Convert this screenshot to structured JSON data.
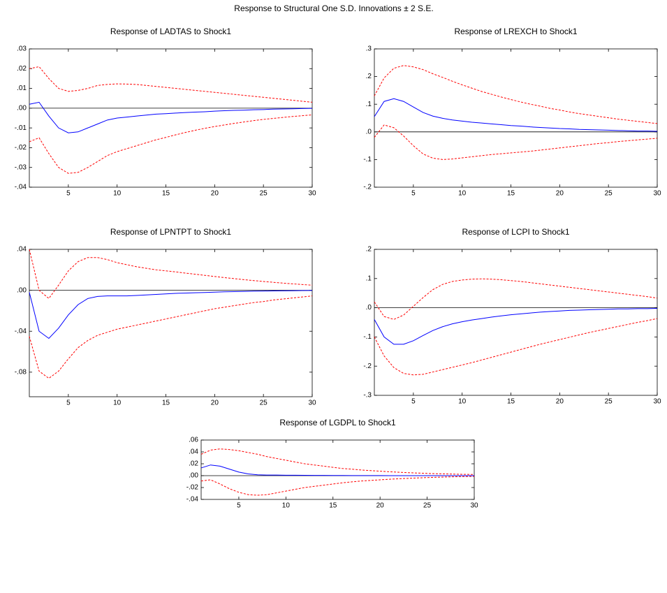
{
  "title": "Response to Structural One S.D. Innovations ± 2 S.E.",
  "chart_data": [
    {
      "type": "line",
      "title": "Response of LADTAS to Shock1",
      "x": [
        1,
        2,
        3,
        4,
        5,
        6,
        7,
        8,
        9,
        10,
        11,
        12,
        13,
        14,
        15,
        16,
        17,
        18,
        19,
        20,
        21,
        22,
        23,
        24,
        25,
        26,
        27,
        28,
        29,
        30
      ],
      "xlim": [
        1,
        30
      ],
      "xticks": [
        5,
        10,
        15,
        20,
        25,
        30
      ],
      "ylim": [
        -0.04,
        0.03
      ],
      "yticks": [
        {
          "value": 0.03,
          "label": ".03"
        },
        {
          "value": 0.02,
          "label": ".02"
        },
        {
          "value": 0.01,
          "label": ".01"
        },
        {
          "value": 0,
          "label": ".00"
        },
        {
          "value": -0.01,
          "label": "-.01"
        },
        {
          "value": -0.02,
          "label": "-.02"
        },
        {
          "value": -0.03,
          "label": "-.03"
        },
        {
          "value": -0.04,
          "label": "-.04"
        }
      ],
      "zero_line": true,
      "series": [
        {
          "color": "#0000ff",
          "dash": false,
          "values": [
            0.002,
            0.003,
            -0.004,
            -0.01,
            -0.0125,
            -0.012,
            -0.01,
            -0.008,
            -0.006,
            -0.005,
            -0.0045,
            -0.004,
            -0.0035,
            -0.003,
            -0.0028,
            -0.0025,
            -0.0022,
            -0.002,
            -0.0018,
            -0.0015,
            -0.0013,
            -0.0011,
            -0.001,
            -0.0008,
            -0.0007,
            -0.0005,
            -0.0004,
            -0.0003,
            -0.0002,
            -0.0001
          ]
        },
        {
          "color": "#ff0000",
          "dash": true,
          "values": [
            0.02,
            0.021,
            0.015,
            0.01,
            0.0085,
            0.009,
            0.01,
            0.0115,
            0.012,
            0.0123,
            0.0122,
            0.012,
            0.0115,
            0.011,
            0.0105,
            0.01,
            0.0095,
            0.009,
            0.0085,
            0.008,
            0.0075,
            0.007,
            0.0065,
            0.006,
            0.0055,
            0.005,
            0.0045,
            0.004,
            0.0035,
            0.003
          ]
        },
        {
          "color": "#ff0000",
          "dash": true,
          "values": [
            -0.017,
            -0.015,
            -0.023,
            -0.03,
            -0.033,
            -0.0325,
            -0.03,
            -0.027,
            -0.024,
            -0.022,
            -0.0205,
            -0.019,
            -0.0175,
            -0.016,
            -0.0148,
            -0.0135,
            -0.0123,
            -0.0112,
            -0.0102,
            -0.0093,
            -0.0085,
            -0.0077,
            -0.007,
            -0.0063,
            -0.0057,
            -0.0052,
            -0.0047,
            -0.0042,
            -0.0038,
            -0.0034
          ]
        }
      ]
    },
    {
      "type": "line",
      "title": "Response of LREXCH to Shock1",
      "x": [
        1,
        2,
        3,
        4,
        5,
        6,
        7,
        8,
        9,
        10,
        11,
        12,
        13,
        14,
        15,
        16,
        17,
        18,
        19,
        20,
        21,
        22,
        23,
        24,
        25,
        26,
        27,
        28,
        29,
        30
      ],
      "xlim": [
        1,
        30
      ],
      "xticks": [
        5,
        10,
        15,
        20,
        25,
        30
      ],
      "ylim": [
        -0.2,
        0.3
      ],
      "yticks": [
        {
          "value": 0.3,
          "label": ".3"
        },
        {
          "value": 0.2,
          "label": ".2"
        },
        {
          "value": 0.1,
          "label": ".1"
        },
        {
          "value": 0,
          "label": ".0"
        },
        {
          "value": -0.1,
          "label": "-.1"
        },
        {
          "value": -0.2,
          "label": "-.2"
        }
      ],
      "zero_line": true,
      "series": [
        {
          "color": "#0000ff",
          "dash": false,
          "values": [
            0.055,
            0.11,
            0.12,
            0.11,
            0.09,
            0.07,
            0.057,
            0.049,
            0.043,
            0.039,
            0.035,
            0.032,
            0.029,
            0.026,
            0.023,
            0.021,
            0.018,
            0.016,
            0.014,
            0.012,
            0.011,
            0.009,
            0.008,
            0.007,
            0.006,
            0.005,
            0.004,
            0.003,
            0.003,
            0.002
          ]
        },
        {
          "color": "#ff0000",
          "dash": true,
          "values": [
            0.13,
            0.195,
            0.23,
            0.24,
            0.235,
            0.225,
            0.21,
            0.197,
            0.183,
            0.17,
            0.158,
            0.146,
            0.136,
            0.126,
            0.117,
            0.108,
            0.1,
            0.093,
            0.085,
            0.079,
            0.072,
            0.066,
            0.061,
            0.056,
            0.051,
            0.046,
            0.042,
            0.038,
            0.034,
            0.03
          ]
        },
        {
          "color": "#ff0000",
          "dash": true,
          "values": [
            -0.02,
            0.025,
            0.015,
            -0.015,
            -0.05,
            -0.08,
            -0.095,
            -0.1,
            -0.098,
            -0.094,
            -0.09,
            -0.086,
            -0.082,
            -0.079,
            -0.076,
            -0.073,
            -0.07,
            -0.066,
            -0.062,
            -0.058,
            -0.054,
            -0.05,
            -0.046,
            -0.042,
            -0.039,
            -0.035,
            -0.032,
            -0.029,
            -0.026,
            -0.023
          ]
        }
      ]
    },
    {
      "type": "line",
      "title": "Response of LPNTPT to Shock1",
      "x": [
        1,
        2,
        3,
        4,
        5,
        6,
        7,
        8,
        9,
        10,
        11,
        12,
        13,
        14,
        15,
        16,
        17,
        18,
        19,
        20,
        21,
        22,
        23,
        24,
        25,
        26,
        27,
        28,
        29,
        30
      ],
      "xlim": [
        1,
        30
      ],
      "xticks": [
        5,
        10,
        15,
        20,
        25,
        30
      ],
      "ylim": [
        -0.104,
        0.04
      ],
      "yticks": [
        {
          "value": 0.04,
          "label": ".04"
        },
        {
          "value": 0,
          "label": ".00"
        },
        {
          "value": -0.04,
          "label": "-.04"
        },
        {
          "value": -0.08,
          "label": "-.08"
        }
      ],
      "zero_line": true,
      "series": [
        {
          "color": "#0000ff",
          "dash": false,
          "values": [
            -0.002,
            -0.04,
            -0.047,
            -0.037,
            -0.024,
            -0.014,
            -0.008,
            -0.006,
            -0.0055,
            -0.0055,
            -0.0055,
            -0.005,
            -0.0045,
            -0.004,
            -0.0035,
            -0.003,
            -0.0027,
            -0.0024,
            -0.0021,
            -0.0018,
            -0.0015,
            -0.0013,
            -0.0011,
            -0.0009,
            -0.0008,
            -0.0006,
            -0.0005,
            -0.0004,
            -0.0003,
            -0.0002
          ]
        },
        {
          "color": "#ff0000",
          "dash": true,
          "values": [
            0.04,
            0.0,
            -0.008,
            0.005,
            0.019,
            0.028,
            0.032,
            0.032,
            0.03,
            0.027,
            0.025,
            0.023,
            0.0215,
            0.02,
            0.019,
            0.018,
            0.0168,
            0.0157,
            0.0146,
            0.0135,
            0.0124,
            0.0114,
            0.0104,
            0.0095,
            0.0086,
            0.0078,
            0.007,
            0.0063,
            0.0056,
            0.005
          ]
        },
        {
          "color": "#ff0000",
          "dash": true,
          "values": [
            -0.045,
            -0.079,
            -0.086,
            -0.079,
            -0.067,
            -0.056,
            -0.049,
            -0.044,
            -0.041,
            -0.038,
            -0.036,
            -0.034,
            -0.032,
            -0.03,
            -0.028,
            -0.026,
            -0.024,
            -0.022,
            -0.02,
            -0.018,
            -0.0165,
            -0.015,
            -0.0135,
            -0.012,
            -0.011,
            -0.0095,
            -0.0085,
            -0.0075,
            -0.0065,
            -0.0055
          ]
        }
      ]
    },
    {
      "type": "line",
      "title": "Response of LCPI to Shock1",
      "x": [
        1,
        2,
        3,
        4,
        5,
        6,
        7,
        8,
        9,
        10,
        11,
        12,
        13,
        14,
        15,
        16,
        17,
        18,
        19,
        20,
        21,
        22,
        23,
        24,
        25,
        26,
        27,
        28,
        29,
        30
      ],
      "xlim": [
        1,
        30
      ],
      "xticks": [
        5,
        10,
        15,
        20,
        25,
        30
      ],
      "ylim": [
        -0.3,
        0.2
      ],
      "yticks": [
        {
          "value": 0.2,
          "label": ".2"
        },
        {
          "value": 0.1,
          "label": ".1"
        },
        {
          "value": 0,
          "label": ".0"
        },
        {
          "value": -0.1,
          "label": "-.1"
        },
        {
          "value": -0.2,
          "label": "-.2"
        },
        {
          "value": -0.3,
          "label": "-.3"
        }
      ],
      "zero_line": true,
      "series": [
        {
          "color": "#0000ff",
          "dash": false,
          "values": [
            -0.04,
            -0.1,
            -0.125,
            -0.125,
            -0.113,
            -0.095,
            -0.078,
            -0.065,
            -0.055,
            -0.048,
            -0.042,
            -0.037,
            -0.032,
            -0.028,
            -0.024,
            -0.021,
            -0.018,
            -0.015,
            -0.013,
            -0.011,
            -0.009,
            -0.008,
            -0.007,
            -0.006,
            -0.005,
            -0.004,
            -0.004,
            -0.003,
            -0.003,
            -0.002
          ]
        },
        {
          "color": "#ff0000",
          "dash": true,
          "values": [
            0.02,
            -0.03,
            -0.04,
            -0.025,
            0.005,
            0.035,
            0.062,
            0.08,
            0.09,
            0.095,
            0.098,
            0.099,
            0.098,
            0.096,
            0.093,
            0.09,
            0.086,
            0.082,
            0.078,
            0.074,
            0.07,
            0.066,
            0.062,
            0.058,
            0.054,
            0.05,
            0.046,
            0.042,
            0.038,
            0.033
          ]
        },
        {
          "color": "#ff0000",
          "dash": true,
          "values": [
            -0.1,
            -0.165,
            -0.205,
            -0.225,
            -0.23,
            -0.228,
            -0.22,
            -0.212,
            -0.204,
            -0.196,
            -0.188,
            -0.179,
            -0.17,
            -0.161,
            -0.152,
            -0.143,
            -0.134,
            -0.125,
            -0.117,
            -0.109,
            -0.101,
            -0.093,
            -0.085,
            -0.078,
            -0.071,
            -0.064,
            -0.057,
            -0.05,
            -0.044,
            -0.037
          ]
        }
      ]
    },
    {
      "type": "line",
      "title": "Response of LGDPL to Shock1",
      "x": [
        1,
        2,
        3,
        4,
        5,
        6,
        7,
        8,
        9,
        10,
        11,
        12,
        13,
        14,
        15,
        16,
        17,
        18,
        19,
        20,
        21,
        22,
        23,
        24,
        25,
        26,
        27,
        28,
        29,
        30
      ],
      "xlim": [
        1,
        30
      ],
      "xticks": [
        5,
        10,
        15,
        20,
        25,
        30
      ],
      "ylim": [
        -0.04,
        0.06
      ],
      "yticks": [
        {
          "value": 0.06,
          "label": ".06"
        },
        {
          "value": 0.04,
          "label": ".04"
        },
        {
          "value": 0.02,
          "label": ".02"
        },
        {
          "value": 0,
          "label": ".00"
        },
        {
          "value": -0.02,
          "label": "-.02"
        },
        {
          "value": -0.04,
          "label": "-.04"
        }
      ],
      "zero_line": true,
      "series": [
        {
          "color": "#0000ff",
          "dash": false,
          "values": [
            0.013,
            0.018,
            0.016,
            0.011,
            0.006,
            0.003,
            0.0015,
            0.001,
            0.001,
            0.0008,
            0.0007,
            0.0006,
            0.0005,
            0.0004,
            0.0003,
            0.0003,
            0.0002,
            0.0002,
            0.0001,
            0.0001,
            0,
            0,
            0,
            0,
            0,
            0,
            0,
            0,
            0,
            0
          ]
        },
        {
          "color": "#ff0000",
          "dash": true,
          "values": [
            0.036,
            0.043,
            0.045,
            0.044,
            0.042,
            0.039,
            0.036,
            0.032,
            0.029,
            0.026,
            0.023,
            0.02,
            0.018,
            0.016,
            0.014,
            0.012,
            0.011,
            0.0095,
            0.0085,
            0.0075,
            0.0066,
            0.0058,
            0.005,
            0.0044,
            0.0038,
            0.0033,
            0.0029,
            0.0025,
            0.0022,
            0.002
          ]
        },
        {
          "color": "#ff0000",
          "dash": true,
          "values": [
            -0.009,
            -0.007,
            -0.014,
            -0.022,
            -0.028,
            -0.032,
            -0.033,
            -0.032,
            -0.029,
            -0.026,
            -0.023,
            -0.02,
            -0.018,
            -0.016,
            -0.014,
            -0.012,
            -0.0105,
            -0.009,
            -0.008,
            -0.007,
            -0.006,
            -0.0052,
            -0.0045,
            -0.0038,
            -0.0032,
            -0.0027,
            -0.0022,
            -0.0018,
            -0.0015,
            -0.0012
          ]
        }
      ]
    }
  ]
}
